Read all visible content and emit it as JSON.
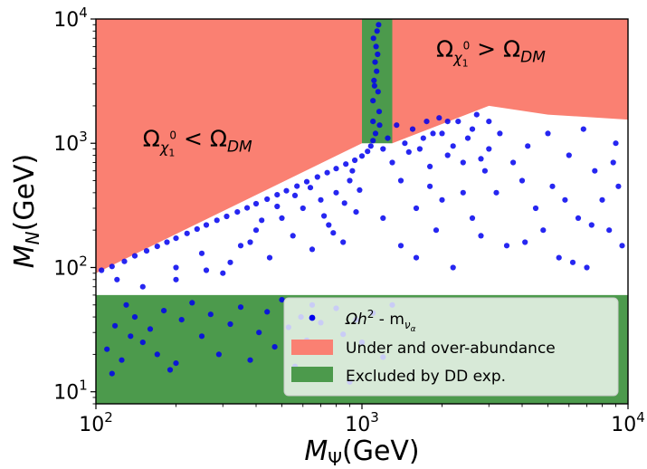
{
  "chart_data": {
    "type": "scatter",
    "x_scale": "log",
    "y_scale": "log",
    "xlim": [
      100,
      10000
    ],
    "ylim": [
      8,
      10000
    ],
    "x_ticks": [
      {
        "value": 100,
        "base": "10",
        "exp": "2"
      },
      {
        "value": 1000,
        "base": "10",
        "exp": "3"
      },
      {
        "value": 10000,
        "base": "10",
        "exp": "4"
      }
    ],
    "y_ticks": [
      {
        "value": 10,
        "base": "10",
        "exp": "1"
      },
      {
        "value": 100,
        "base": "10",
        "exp": "2"
      },
      {
        "value": 1000,
        "base": "10",
        "exp": "3"
      },
      {
        "value": 10000,
        "base": "10",
        "exp": "4"
      }
    ],
    "xlabel": {
      "main": "M",
      "sub": "Ψ",
      "unit": "(GeV)"
    },
    "ylabel": {
      "main": "M",
      "sub": "N",
      "unit": "(GeV)"
    },
    "colors": {
      "points": "#0000ee",
      "abundance": "#fa8072",
      "excluded": "#4c9a4c"
    },
    "regions": [
      {
        "name": "Under and over-abundance",
        "kind": "abundance",
        "points": [
          [
            100,
            90
          ],
          [
            1000,
            1000
          ],
          [
            1000,
            10000
          ],
          [
            100,
            10000
          ]
        ]
      },
      {
        "name": "Under and over-abundance",
        "kind": "abundance",
        "points": [
          [
            1300,
            1000
          ],
          [
            3000,
            2000
          ],
          [
            5000,
            1700
          ],
          [
            10000,
            1550
          ],
          [
            10000,
            10000
          ],
          [
            1300,
            10000
          ]
        ]
      },
      {
        "name": "Excluded by DD exp.",
        "kind": "excluded",
        "points": [
          [
            100,
            8
          ],
          [
            10000,
            8
          ],
          [
            10000,
            60
          ],
          [
            100,
            60
          ]
        ]
      },
      {
        "name": "Excluded by DD exp.",
        "kind": "excluded",
        "points": [
          [
            1000,
            1000
          ],
          [
            1300,
            1000
          ],
          [
            1300,
            10000
          ],
          [
            1000,
            10000
          ]
        ]
      }
    ],
    "annotations": [
      {
        "text_main": "Ω",
        "text_sub": "χ",
        "text_subsub": "1",
        "text_sup": "0",
        "text_rest": " < Ω",
        "text_rest_sub": "DM",
        "x": 150,
        "y": 950
      },
      {
        "text_main": "Ω",
        "text_sub": "χ",
        "text_subsub": "1",
        "text_sup": "0",
        "text_rest": " > Ω",
        "text_rest_sub": "DM",
        "x": 1900,
        "y": 5000
      }
    ],
    "legend": {
      "placement": "lower-right",
      "entries": [
        {
          "kind": "marker",
          "label_main": "Ωh",
          "label_sup": "2",
          "label_rest": " - m",
          "label_sub": "ν",
          "label_subsub": "α"
        },
        {
          "kind": "abundance",
          "label": "Under and over-abundance"
        },
        {
          "kind": "excluded",
          "label": "Excluded by DD exp."
        }
      ]
    },
    "series": [
      {
        "name": "Ωh² - mνα",
        "points": [
          [
            105,
            95
          ],
          [
            115,
            102
          ],
          [
            128,
            112
          ],
          [
            140,
            124
          ],
          [
            155,
            136
          ],
          [
            170,
            148
          ],
          [
            185,
            160
          ],
          [
            200,
            172
          ],
          [
            220,
            188
          ],
          [
            240,
            204
          ],
          [
            260,
            220
          ],
          [
            285,
            240
          ],
          [
            310,
            258
          ],
          [
            340,
            280
          ],
          [
            370,
            302
          ],
          [
            400,
            326
          ],
          [
            440,
            355
          ],
          [
            480,
            385
          ],
          [
            520,
            415
          ],
          [
            570,
            452
          ],
          [
            620,
            490
          ],
          [
            680,
            535
          ],
          [
            740,
            580
          ],
          [
            800,
            625
          ],
          [
            870,
            680
          ],
          [
            940,
            730
          ],
          [
            1000,
            790
          ],
          [
            1050,
            860
          ],
          [
            1080,
            950
          ],
          [
            1100,
            1050
          ],
          [
            1100,
            1500
          ],
          [
            1100,
            2200
          ],
          [
            1110,
            3200
          ],
          [
            1120,
            4500
          ],
          [
            1130,
            6000
          ],
          [
            1140,
            8000
          ],
          [
            1150,
            2600
          ],
          [
            1160,
            1800
          ],
          [
            1125,
            1200
          ],
          [
            1135,
            3800
          ],
          [
            1145,
            5200
          ],
          [
            1105,
            7000
          ],
          [
            1155,
            9000
          ],
          [
            1115,
            2900
          ],
          [
            1165,
            1400
          ],
          [
            120,
            80
          ],
          [
            150,
            70
          ],
          [
            200,
            100
          ],
          [
            250,
            130
          ],
          [
            300,
            90
          ],
          [
            350,
            150
          ],
          [
            400,
            200
          ],
          [
            450,
            120
          ],
          [
            500,
            250
          ],
          [
            550,
            180
          ],
          [
            600,
            300
          ],
          [
            650,
            140
          ],
          [
            700,
            350
          ],
          [
            750,
            220
          ],
          [
            800,
            400
          ],
          [
            850,
            160
          ],
          [
            900,
            500
          ],
          [
            950,
            280
          ],
          [
            200,
            80
          ],
          [
            260,
            95
          ],
          [
            320,
            110
          ],
          [
            380,
            160
          ],
          [
            420,
            240
          ],
          [
            480,
            310
          ],
          [
            560,
            380
          ],
          [
            640,
            440
          ],
          [
            720,
            260
          ],
          [
            780,
            190
          ],
          [
            860,
            330
          ],
          [
            920,
            600
          ],
          [
            980,
            420
          ],
          [
            1200,
            900
          ],
          [
            1300,
            700
          ],
          [
            1400,
            500
          ],
          [
            1500,
            850
          ],
          [
            1600,
            300
          ],
          [
            1700,
            1100
          ],
          [
            1800,
            650
          ],
          [
            1900,
            200
          ],
          [
            2000,
            1200
          ],
          [
            2200,
            950
          ],
          [
            2400,
            400
          ],
          [
            2600,
            1300
          ],
          [
            2800,
            750
          ],
          [
            3000,
            1500
          ],
          [
            1250,
            1100
          ],
          [
            1350,
            1400
          ],
          [
            1450,
            1000
          ],
          [
            1550,
            1300
          ],
          [
            1650,
            900
          ],
          [
            1750,
            1500
          ],
          [
            1850,
            1200
          ],
          [
            1950,
            1600
          ],
          [
            2100,
            800
          ],
          [
            2300,
            1500
          ],
          [
            2500,
            1100
          ],
          [
            2700,
            1700
          ],
          [
            2900,
            600
          ],
          [
            1200,
            250
          ],
          [
            1400,
            150
          ],
          [
            1600,
            120
          ],
          [
            1800,
            450
          ],
          [
            2000,
            350
          ],
          [
            2200,
            100
          ],
          [
            2400,
            700
          ],
          [
            2600,
            250
          ],
          [
            2800,
            180
          ],
          [
            3000,
            900
          ],
          [
            3500,
            150
          ],
          [
            4000,
            500
          ],
          [
            4500,
            300
          ],
          [
            5000,
            1200
          ],
          [
            5500,
            120
          ],
          [
            6000,
            800
          ],
          [
            6500,
            250
          ],
          [
            7000,
            100
          ],
          [
            7500,
            600
          ],
          [
            8000,
            350
          ],
          [
            8500,
            200
          ],
          [
            9000,
            1000
          ],
          [
            9500,
            150
          ],
          [
            4200,
            950
          ],
          [
            5200,
            450
          ],
          [
            6800,
            1300
          ],
          [
            3300,
            1200
          ],
          [
            3700,
            700
          ],
          [
            4800,
            200
          ],
          [
            5800,
            350
          ],
          [
            7300,
            220
          ],
          [
            8800,
            700
          ],
          [
            3200,
            400
          ],
          [
            4100,
            160
          ],
          [
            6200,
            110
          ],
          [
            9200,
            450
          ],
          [
            2100,
            1500
          ],
          [
            130,
            50
          ],
          [
            140,
            40
          ],
          [
            150,
            25
          ],
          [
            160,
            32
          ],
          [
            180,
            45
          ],
          [
            190,
            15
          ],
          [
            210,
            38
          ],
          [
            230,
            52
          ],
          [
            250,
            28
          ],
          [
            270,
            42
          ],
          [
            290,
            20
          ],
          [
            320,
            35
          ],
          [
            350,
            48
          ],
          [
            380,
            18
          ],
          [
            410,
            30
          ],
          [
            440,
            44
          ],
          [
            470,
            23
          ],
          [
            500,
            55
          ],
          [
            530,
            33
          ],
          [
            560,
            16
          ],
          [
            590,
            40
          ],
          [
            620,
            26
          ],
          [
            650,
            50
          ],
          [
            700,
            36
          ],
          [
            750,
            22
          ],
          [
            800,
            47
          ],
          [
            850,
            29
          ],
          [
            900,
            12
          ],
          [
            950,
            38
          ],
          [
            1000,
            25
          ],
          [
            1100,
            43
          ],
          [
            1200,
            19
          ],
          [
            1300,
            50
          ],
          [
            110,
            22
          ],
          [
            115,
            14
          ],
          [
            118,
            34
          ],
          [
            125,
            18
          ],
          [
            135,
            28
          ],
          [
            170,
            20
          ],
          [
            200,
            17
          ]
        ]
      }
    ]
  }
}
